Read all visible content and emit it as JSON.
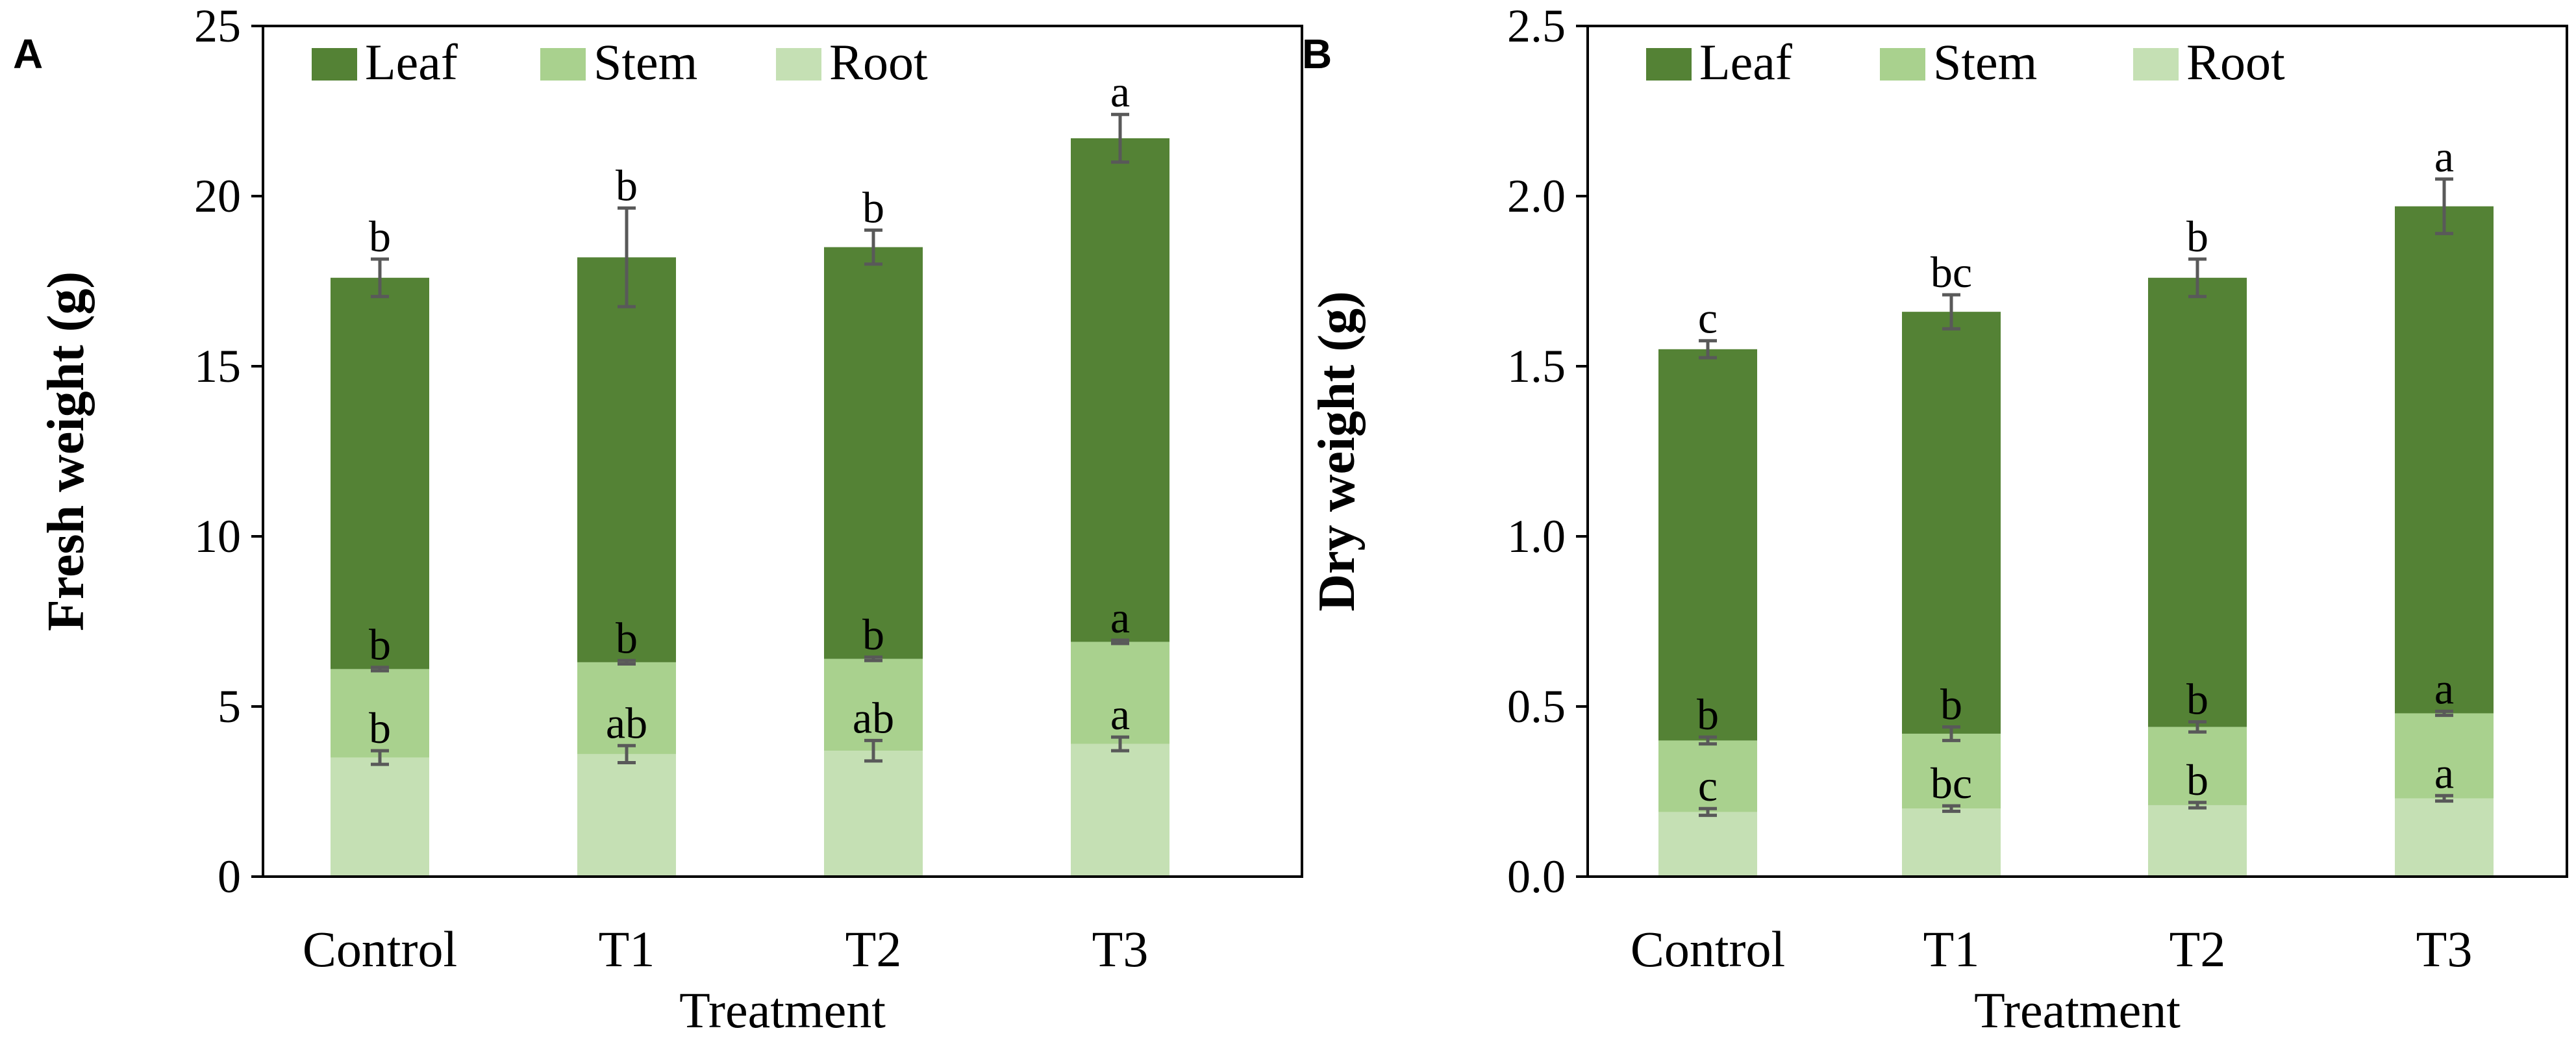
{
  "figure": {
    "colors": {
      "leaf": "#548235",
      "stem": "#a9d18e",
      "root": "#c5e0b4",
      "axis": "#000000",
      "error": "#595959"
    }
  },
  "chart_data": [
    {
      "type": "bar",
      "stacked": true,
      "panel_label": "A",
      "categories": [
        "Control",
        "T1",
        "T2",
        "T3"
      ],
      "xlabel": "Treatment",
      "ylabel": "Fresh weight (g)",
      "ylim": [
        0,
        25
      ],
      "yticks": [
        "0",
        "5",
        "10",
        "15",
        "20",
        "25"
      ],
      "ytick_values": [
        0,
        5,
        10,
        15,
        20,
        25
      ],
      "legend": [
        "Leaf",
        "Stem",
        "Root"
      ],
      "legend_position": "top",
      "series": [
        {
          "name": "Root",
          "cumulative": [
            3.5,
            3.6,
            3.7,
            3.9
          ],
          "error": [
            0.2,
            0.25,
            0.3,
            0.2
          ],
          "letters": [
            "b",
            "ab",
            "ab",
            "a"
          ]
        },
        {
          "name": "Stem",
          "cumulative": [
            6.1,
            6.3,
            6.4,
            6.9
          ],
          "error": [
            0.05,
            0.05,
            0.05,
            0.05
          ],
          "letters": [
            "b",
            "b",
            "b",
            "a"
          ]
        },
        {
          "name": "Leaf",
          "cumulative": [
            17.6,
            18.2,
            18.5,
            21.7
          ],
          "error": [
            0.55,
            1.45,
            0.5,
            0.7
          ],
          "letters": [
            "b",
            "b",
            "b",
            "a"
          ]
        }
      ]
    },
    {
      "type": "bar",
      "stacked": true,
      "panel_label": "B",
      "categories": [
        "Control",
        "T1",
        "T2",
        "T3"
      ],
      "xlabel": "Treatment",
      "ylabel": "Dry weight (g)",
      "ylim": [
        0,
        2.5
      ],
      "yticks": [
        "0.0",
        "0.5",
        "1.0",
        "1.5",
        "2.0",
        "2.5"
      ],
      "ytick_values": [
        0,
        0.5,
        1.0,
        1.5,
        2.0,
        2.5
      ],
      "legend": [
        "Leaf",
        "Stem",
        "Root"
      ],
      "legend_position": "top",
      "series": [
        {
          "name": "Root",
          "cumulative": [
            0.19,
            0.2,
            0.21,
            0.23
          ],
          "error": [
            0.01,
            0.008,
            0.008,
            0.008
          ],
          "letters": [
            "c",
            "bc",
            "b",
            "a"
          ]
        },
        {
          "name": "Stem",
          "cumulative": [
            0.4,
            0.42,
            0.44,
            0.48
          ],
          "error": [
            0.01,
            0.02,
            0.015,
            0.006
          ],
          "letters": [
            "b",
            "b",
            "b",
            "a"
          ]
        },
        {
          "name": "Leaf",
          "cumulative": [
            1.55,
            1.66,
            1.76,
            1.97
          ],
          "error": [
            0.025,
            0.05,
            0.055,
            0.08
          ],
          "letters": [
            "c",
            "bc",
            "b",
            "a"
          ]
        }
      ]
    }
  ]
}
